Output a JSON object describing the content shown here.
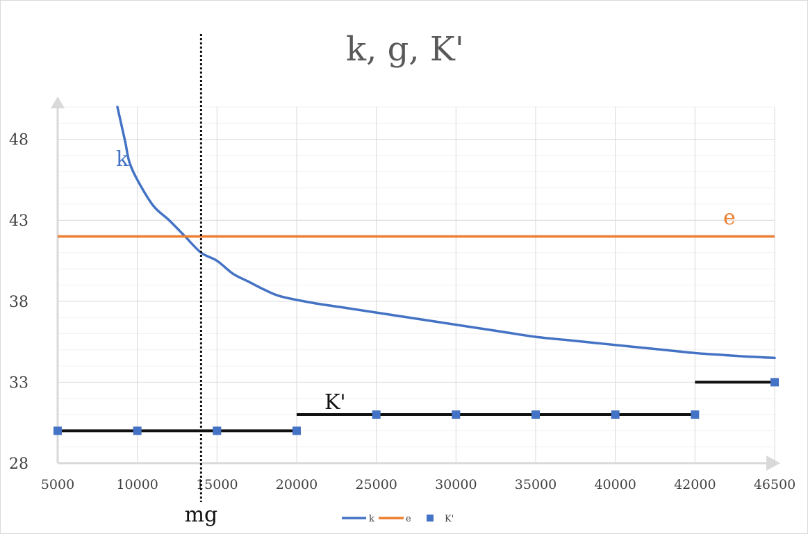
{
  "chart_data": {
    "type": "line",
    "title": "k, g, K'",
    "categories": [
      "5000",
      "10000",
      "15000",
      "20000",
      "25000",
      "30000",
      "35000",
      "40000",
      "42000",
      "46500"
    ],
    "y_ticks": [
      "48",
      "43",
      "38",
      "33",
      "28"
    ],
    "ylim": [
      28,
      50
    ],
    "grid": true,
    "legend_position": "bottom",
    "series": [
      {
        "name": "k",
        "style": "line",
        "color": "#4472c4",
        "points": [
          [
            3.75,
            50
          ],
          [
            4.0,
            48.9
          ],
          [
            4.25,
            47.8
          ],
          [
            4.5,
            46.6
          ],
          [
            5.0,
            45.5
          ],
          [
            6.0,
            43.9
          ],
          [
            7.0,
            43.0
          ],
          [
            8.0,
            42.0
          ],
          [
            9.0,
            41.0
          ],
          [
            10.0,
            40.5
          ],
          [
            11.0,
            39.7
          ],
          [
            12.0,
            39.2
          ],
          [
            13.0,
            38.7
          ],
          [
            14.0,
            38.3
          ],
          [
            16.0,
            37.9
          ],
          [
            18.0,
            37.6
          ],
          [
            20.0,
            37.3
          ],
          [
            22.0,
            37.0
          ],
          [
            24.0,
            36.7
          ],
          [
            26.0,
            36.4
          ],
          [
            28.0,
            36.1
          ],
          [
            30.0,
            35.8
          ],
          [
            32.0,
            35.6
          ],
          [
            34.0,
            35.4
          ],
          [
            36.0,
            35.2
          ],
          [
            38.0,
            35.0
          ],
          [
            40.0,
            34.8
          ],
          [
            41.5,
            34.7
          ],
          [
            43.0,
            34.6
          ],
          [
            44.0,
            34.55
          ],
          [
            45.0,
            34.5
          ]
        ]
      },
      {
        "name": "e",
        "style": "line",
        "color": "#ed7d31",
        "value": 42
      },
      {
        "name": "K'",
        "style": "markers",
        "color": "#4472c4",
        "values": [
          30,
          30,
          30,
          30,
          31,
          31,
          31,
          31,
          31,
          33
        ]
      }
    ],
    "step_segments": [
      {
        "from": 0,
        "to": 3,
        "y": 30
      },
      {
        "from": 3,
        "to": 8,
        "y": 31
      },
      {
        "from": 8,
        "to": 9,
        "y": 33
      }
    ],
    "vertical_marker": {
      "label": "mg",
      "x": 1.8
    },
    "annotations": {
      "k": "k",
      "e": "e",
      "K_prime": "K'"
    }
  }
}
